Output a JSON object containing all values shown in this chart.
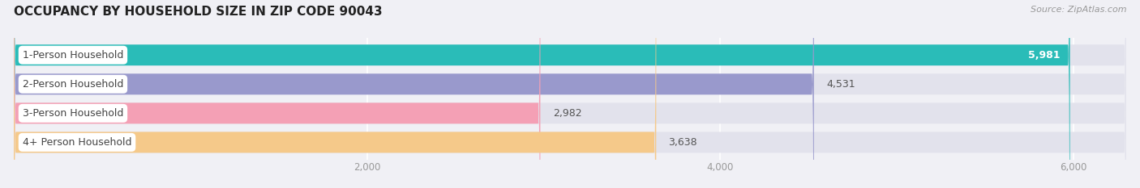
{
  "title": "OCCUPANCY BY HOUSEHOLD SIZE IN ZIP CODE 90043",
  "source": "Source: ZipAtlas.com",
  "categories": [
    "1-Person Household",
    "2-Person Household",
    "3-Person Household",
    "4+ Person Household"
  ],
  "values": [
    5981,
    4531,
    2982,
    3638
  ],
  "bar_colors": [
    "#2abcb8",
    "#9999cc",
    "#f4a0b5",
    "#f5c98a"
  ],
  "bg_color": "#f0f0f5",
  "bar_bg_color": "#e2e2ec",
  "xlim_max": 6300,
  "xticks": [
    2000,
    4000,
    6000
  ],
  "xtick_labels": [
    "2,000",
    "4,000",
    "6,000"
  ],
  "title_fontsize": 11,
  "source_fontsize": 8,
  "bar_height": 0.72,
  "value_fontsize": 9,
  "label_fontsize": 9,
  "label_text_color": "#444444",
  "value_color_inside": "#ffffff",
  "value_color_outside": "#555555",
  "grid_color": "#ffffff",
  "tick_color": "#999999"
}
